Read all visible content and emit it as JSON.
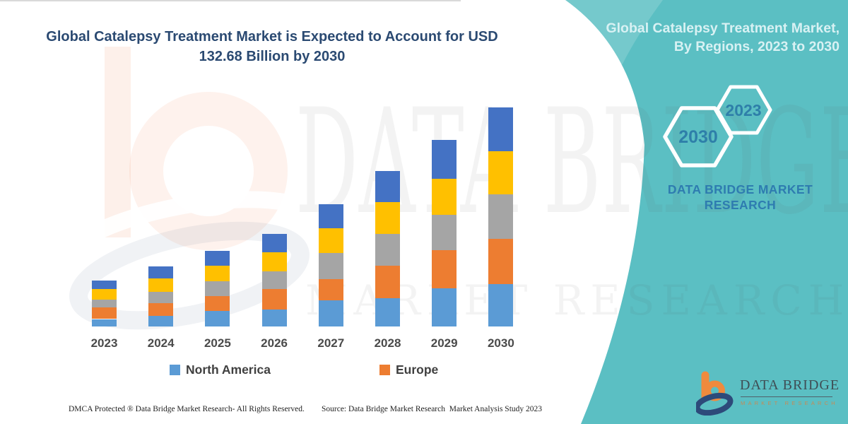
{
  "title": {
    "line1": "Global Catalepsy Treatment Market is Expected to Account for USD",
    "line2": "132.68 Billion by 2030"
  },
  "side_panel": {
    "heading_line1": "Global Catalepsy Treatment Market,",
    "heading_line2": "By Regions, 2023 to 2030",
    "hexagon_labels": {
      "large": "2030",
      "small": "2023"
    },
    "brand_line1": "DATA BRIDGE MARKET",
    "brand_line2": "RESEARCH",
    "bg_color": "#5BBFC3",
    "hexagon_text_color": "#2E7FA9"
  },
  "chart_data": {
    "type": "bar",
    "stacked": true,
    "unit": "USD Billion",
    "categories": [
      "2023",
      "2024",
      "2025",
      "2026",
      "2027",
      "2028",
      "2029",
      "2030"
    ],
    "series": [
      {
        "name": "North America",
        "color": "#5B9BD5",
        "values": [
          4.5,
          6.4,
          9.6,
          10.2,
          15.8,
          17.0,
          23.0,
          25.8
        ]
      },
      {
        "name": "Europe",
        "color": "#ED7D31",
        "values": [
          7.0,
          7.6,
          8.8,
          12.4,
          13.0,
          19.8,
          23.2,
          27.2
        ]
      },
      {
        "name": "",
        "color": "#A5A5A5",
        "values": [
          4.6,
          7.0,
          9.0,
          10.6,
          15.6,
          19.2,
          21.4,
          27.0
        ]
      },
      {
        "name": "",
        "color": "#FFC000",
        "values": [
          6.6,
          8.2,
          9.4,
          11.8,
          15.2,
          19.5,
          22.0,
          26.2
        ]
      },
      {
        "name": "",
        "color": "#4472C4",
        "values": [
          5.1,
          7.4,
          9.0,
          11.1,
          14.4,
          18.5,
          23.4,
          26.5
        ]
      }
    ],
    "totals_estimated": [
      27.8,
      36.6,
      45.8,
      56.1,
      74.0,
      94.0,
      113.0,
      132.68
    ],
    "legend": [
      {
        "label": "North America",
        "color": "#5B9BD5"
      },
      {
        "label": "Europe",
        "color": "#ED7D31"
      }
    ],
    "ylim": [
      0,
      140
    ],
    "grid": false,
    "note": "Only the 2030 total (USD 132.68 billion) is stated in the image; segment values are estimated from bar heights."
  },
  "watermark": {
    "brand_text": "DATA BRIDGE",
    "sub_text": "MARKET RESEARCH"
  },
  "logo": {
    "name": "DATA BRIDGE",
    "tagline": "MARKET RESEARCH"
  },
  "footer": {
    "dmca": "DMCA Protected ® Data Bridge Market Research- All Rights Reserved.",
    "source": "Source: Data Bridge Market Research  Market Analysis Study 2023"
  }
}
